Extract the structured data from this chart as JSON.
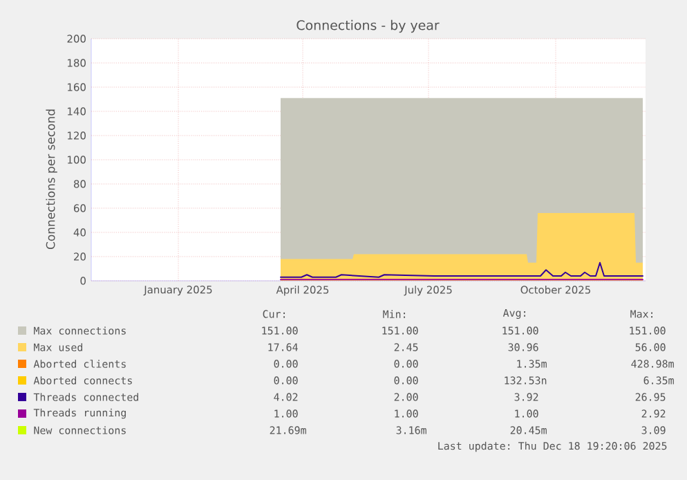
{
  "chart_data": {
    "type": "area",
    "title": "Connections - by year",
    "ylabel": "Connections per second",
    "xlim": [
      "2024-11-14",
      "2025-12-20"
    ],
    "xticks": [
      {
        "value": "2025-01-16",
        "label": "January 2025"
      },
      {
        "value": "2025-04-16",
        "label": "April 2025"
      },
      {
        "value": "2025-07-16",
        "label": "July 2025"
      },
      {
        "value": "2025-10-16",
        "label": "October 2025"
      }
    ],
    "ylim": [
      0,
      200
    ],
    "yticks": [
      0,
      20,
      40,
      60,
      80,
      100,
      120,
      140,
      160,
      180,
      200
    ],
    "grid": true,
    "legend": "bottom",
    "series": [
      {
        "name": "Max connections",
        "color": "#c8c8bc",
        "x": [
          "2025-03-31",
          "2025-12-18"
        ],
        "values": [
          151,
          151
        ]
      },
      {
        "name": "Max used",
        "color": "#ffd660",
        "x": [
          "2025-03-31",
          "2025-05-22",
          "2025-05-23",
          "2025-09-25",
          "2025-09-26",
          "2025-10-02",
          "2025-10-03",
          "2025-12-12",
          "2025-12-13",
          "2025-12-18"
        ],
        "values": [
          18,
          18,
          22,
          22,
          15,
          15,
          56,
          56,
          15,
          15
        ]
      },
      {
        "name": "Aborted clients",
        "type": "line",
        "color": "#ff7f00",
        "values": [
          null
        ]
      },
      {
        "name": "Aborted connects",
        "type": "line",
        "color": "#ffcc00",
        "values": [
          null
        ]
      },
      {
        "name": "Threads connected",
        "type": "line",
        "color": "#330099",
        "x": [
          "2025-03-31",
          "2025-04-15",
          "2025-04-19",
          "2025-04-23",
          "2025-05-10",
          "2025-05-14",
          "2025-06-10",
          "2025-06-14",
          "2025-07-20",
          "2025-08-15",
          "2025-09-20",
          "2025-10-05",
          "2025-10-09",
          "2025-10-14",
          "2025-10-20",
          "2025-10-23",
          "2025-10-27",
          "2025-11-03",
          "2025-11-06",
          "2025-11-10",
          "2025-11-14",
          "2025-11-17",
          "2025-11-20",
          "2025-12-01",
          "2025-12-18"
        ],
        "values": [
          3,
          3,
          5,
          3,
          3,
          5,
          3,
          5,
          4,
          4,
          4,
          4,
          9,
          4,
          4,
          7,
          4,
          4,
          7,
          4,
          4,
          15,
          4,
          4,
          4
        ]
      },
      {
        "name": "Threads running",
        "type": "line",
        "color": "#990099",
        "x": [
          "2025-03-31",
          "2025-12-18"
        ],
        "values": [
          1,
          1
        ]
      },
      {
        "name": "New connections",
        "type": "line",
        "color": "#ccff00",
        "values": [
          null
        ]
      }
    ],
    "annotations": [
      "Cur:",
      "Min:",
      "Avg:",
      "Max:",
      "151.00",
      "151.00",
      "151.00",
      "151.00",
      "17.64",
      "2.45",
      "30.96",
      "56.00",
      "0.00",
      "0.00",
      "1.35m",
      "428.98m",
      "0.00",
      "0.00",
      "132.53n",
      "6.35m",
      "4.02",
      "2.00",
      "3.92",
      "26.95",
      "1.00",
      "1.00",
      "1.00",
      "2.92",
      "21.69m",
      "3.16m",
      "20.45m",
      "3.09",
      "Last update: Thu Dec 18 19:20:06 2025"
    ]
  }
}
